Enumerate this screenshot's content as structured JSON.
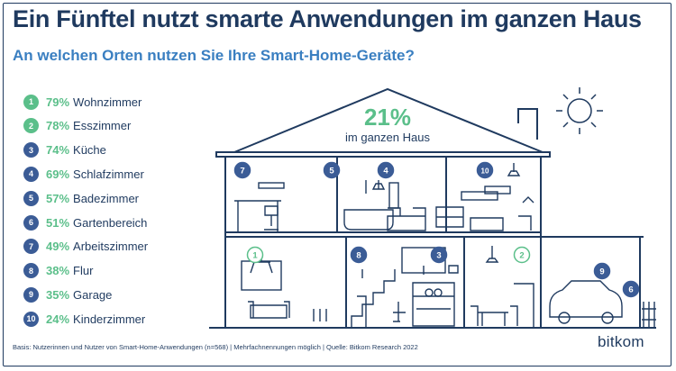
{
  "title": "Ein Fünftel nutzt smarte Anwendungen im ganzen Haus",
  "subtitle": "An welchen Orten nutzen Sie Ihre Smart-Home-Geräte?",
  "chart_data": {
    "type": "bar",
    "categories": [
      "Wohnzimmer",
      "Esszimmer",
      "Küche",
      "Schlafzimmer",
      "Badezimmer",
      "Gartenbereich",
      "Arbeitszimmer",
      "Flur",
      "Garage",
      "Kinderzimmer"
    ],
    "values": [
      79,
      78,
      74,
      69,
      57,
      51,
      49,
      38,
      35,
      24
    ],
    "ranks": [
      "1",
      "2",
      "3",
      "4",
      "5",
      "6",
      "7",
      "8",
      "9",
      "10"
    ],
    "value_labels": [
      "79%",
      "78%",
      "74%",
      "69%",
      "57%",
      "51%",
      "49%",
      "38%",
      "35%",
      "24%"
    ],
    "unit": "%",
    "highlight": {
      "value_label": "21%",
      "label": "im ganzen Haus"
    },
    "colors": {
      "green": "#5bbf8a",
      "blue": "#3b5c96",
      "navy": "#1f3a5f",
      "accent": "#3a7fc1"
    }
  },
  "footnote": "Basis: Nutzerinnen und Nutzer von Smart-Home-Anwendungen (n=568) | Mehrfachnennungen möglich | Quelle: Bitkom Research 2022",
  "logo_text": "bitkom"
}
